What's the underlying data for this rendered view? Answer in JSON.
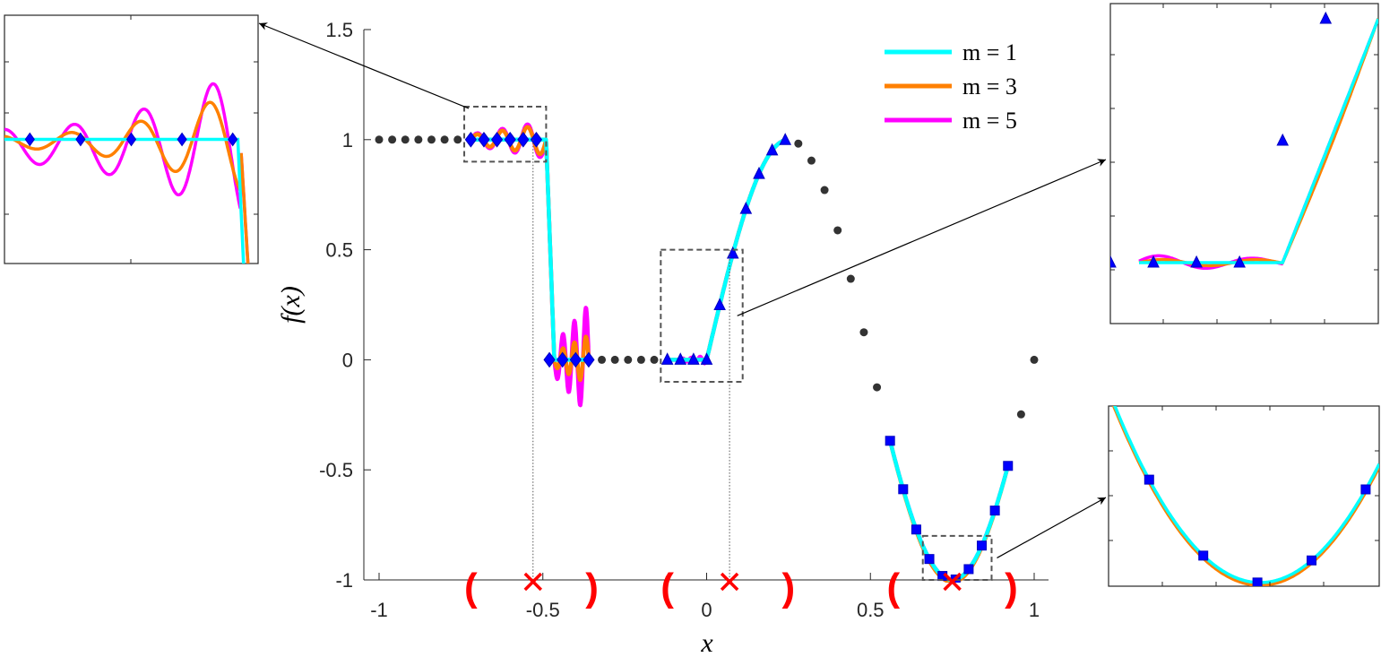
{
  "chart_data": {
    "type": "line",
    "xlabel": "x",
    "ylabel": "f(x)",
    "xlim": [
      -1,
      1
    ],
    "ylim": [
      -1,
      1.5
    ],
    "x_ticks": [
      -1,
      -0.5,
      0,
      0.5,
      1
    ],
    "y_ticks": [
      -1,
      -0.5,
      0,
      0.5,
      1,
      1.5
    ],
    "x_tick_labels": [
      "-1",
      "-0.5",
      "0",
      "0.5",
      "1"
    ],
    "y_tick_labels": [
      "-1",
      "-0.5",
      "0",
      "0.5",
      "1",
      "1.5"
    ],
    "grid": false,
    "legend_position": "top-right",
    "legend": [
      {
        "label": "m = 1",
        "color": "#00ffff"
      },
      {
        "label": "m = 3",
        "color": "#ff8000"
      },
      {
        "label": "m = 5",
        "color": "#ff00ff"
      }
    ],
    "grid_points": {
      "x": [
        -1,
        -0.96,
        -0.92,
        -0.88,
        -0.84,
        -0.8,
        -0.76,
        -0.72,
        -0.68,
        -0.64,
        -0.6,
        -0.56,
        -0.52,
        -0.48,
        -0.44,
        -0.4,
        -0.36,
        -0.32,
        -0.28,
        -0.24,
        -0.2,
        -0.16,
        -0.12,
        -0.08,
        -0.04,
        0,
        0.04,
        0.08,
        0.12,
        0.16,
        0.2,
        0.24,
        0.28,
        0.32,
        0.36,
        0.4,
        0.44,
        0.48,
        0.52,
        0.56,
        0.6,
        0.64,
        0.68,
        0.72,
        0.76,
        0.8,
        0.84,
        0.88,
        0.92,
        0.96,
        1
      ],
      "y": [
        1,
        1,
        1,
        1,
        1,
        1,
        1,
        1,
        1,
        1,
        1,
        1,
        1,
        0,
        0,
        0,
        0,
        0,
        0,
        0,
        0,
        0,
        0,
        0,
        0,
        0,
        0.248,
        0.482,
        0.685,
        0.844,
        0.951,
        0.998,
        0.982,
        0.905,
        0.771,
        0.588,
        0.368,
        0.125,
        -0.125,
        -0.368,
        -0.588,
        -0.771,
        -0.905,
        -0.982,
        -0.998,
        -0.951,
        -0.844,
        -0.685,
        -0.482,
        -0.248,
        0
      ]
    },
    "stencil_markers": {
      "diamonds": {
        "x": [
          -0.72,
          -0.68,
          -0.64,
          -0.6,
          -0.56,
          -0.52,
          -0.48,
          -0.44,
          -0.4,
          -0.36
        ],
        "y": [
          1,
          1,
          1,
          1,
          1,
          1,
          0,
          0,
          0,
          0
        ]
      },
      "triangles": {
        "x": [
          -0.12,
          -0.08,
          -0.04,
          0,
          0.04,
          0.08,
          0.12,
          0.16,
          0.2,
          0.24
        ],
        "y": [
          0,
          0,
          0,
          0,
          0.248,
          0.482,
          0.685,
          0.844,
          0.951,
          0.998
        ]
      },
      "squares": {
        "x": [
          0.56,
          0.6,
          0.64,
          0.68,
          0.72,
          0.76,
          0.8,
          0.84,
          0.88,
          0.92
        ],
        "y": [
          -0.368,
          -0.588,
          -0.771,
          -0.905,
          -0.982,
          -0.998,
          -0.951,
          -0.844,
          -0.685,
          -0.482
        ]
      }
    },
    "crosses": {
      "x": [
        -0.53,
        0.07,
        0.75
      ],
      "y": [
        -1,
        -1,
        -1
      ]
    },
    "brackets": [
      {
        "left": -0.72,
        "right": -0.35
      },
      {
        "left": -0.12,
        "right": 0.25
      },
      {
        "left": 0.57,
        "right": 0.93
      }
    ],
    "dotted_vlines": [
      -0.53,
      0.07
    ],
    "zoom_boxes": [
      {
        "x": [
          -0.74,
          -0.49
        ],
        "y": [
          0.9,
          1.15
        ]
      },
      {
        "x": [
          -0.14,
          0.11
        ],
        "y": [
          -0.1,
          0.5
        ]
      },
      {
        "x": [
          0.66,
          0.87
        ],
        "y": [
          -1,
          -0.8
        ]
      }
    ]
  }
}
